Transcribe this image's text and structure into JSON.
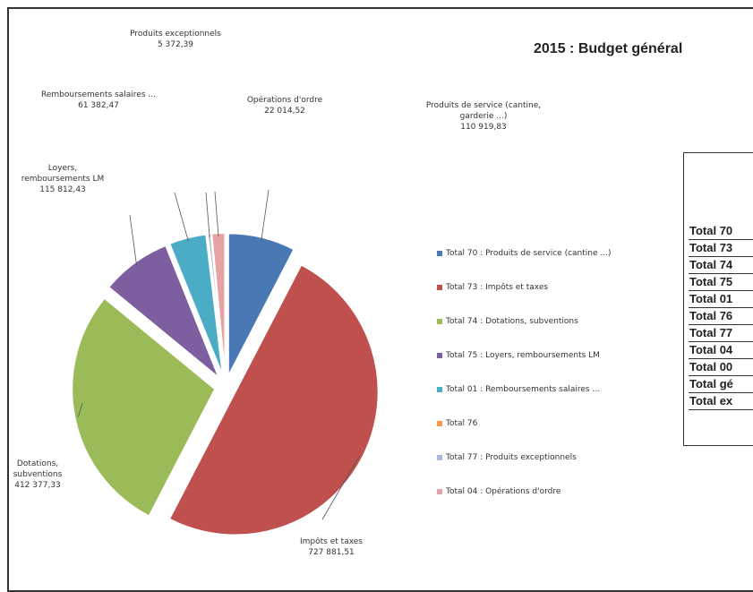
{
  "title": "2015 : Budget général",
  "chart_data": {
    "type": "pie",
    "title": "2015 : Budget général",
    "slices": [
      {
        "legend": "Total 70 : Produits de service (cantine ...)",
        "label": "Produits de service (cantine, garderie ...)",
        "value_text": "110 919,83",
        "value": 110919.83,
        "color": "#4a78b5",
        "exploded": true
      },
      {
        "legend": "Total 73 : Impôts et taxes",
        "label": "Impôts et taxes",
        "value_text": "727 881,51",
        "value": 727881.51,
        "color": "#c0504d",
        "exploded": true
      },
      {
        "legend": "Total 74 : Dotations, subventions",
        "label": "Dotations, subventions",
        "value_text": "412 377,33",
        "value": 412377.33,
        "color": "#9bbb59",
        "exploded": true
      },
      {
        "legend": "Total 75 : Loyers, remboursements LM",
        "label": "Loyers, remboursements LM",
        "value_text": "115 812,43",
        "value": 115812.43,
        "color": "#7d5fa0",
        "exploded": true
      },
      {
        "legend": "Total 01 : Remboursements salaires ...",
        "label": "Remboursements salaires ...",
        "value_text": "61 382,47",
        "value": 61382.47,
        "color": "#4bacc6",
        "exploded": true
      },
      {
        "legend": "Total 76",
        "label": "",
        "value_text": "",
        "value": 0,
        "color": "#f79646",
        "exploded": false
      },
      {
        "legend": "Total 77 : Produits exceptionnels",
        "label": "Produits exceptionnels",
        "value_text": "5 372,39",
        "value": 5372.39,
        "color": "#aab8dc",
        "exploded": true
      },
      {
        "legend": "Total 04 : Opérations d'ordre",
        "label": "Opérations d'ordre",
        "value_text": "22 014,52",
        "value": 22014.52,
        "color": "#e6a3a3",
        "exploded": true
      }
    ],
    "legend_position": "right"
  },
  "table": {
    "rows": [
      "Total 70",
      "Total 73",
      "Total 74",
      "Total 75",
      "Total 01",
      "Total 76",
      "Total 77",
      "Total 04",
      "Total 00",
      "Total gé",
      "Total ex"
    ]
  }
}
